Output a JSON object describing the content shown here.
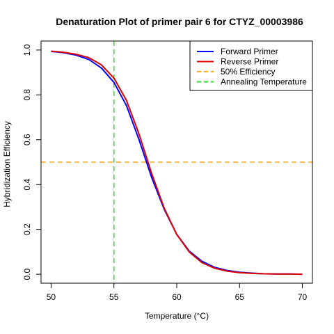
{
  "chart_data": {
    "type": "line",
    "title": "Denaturation Plot of primer pair 6 for CTYZ_00003986",
    "xlabel": "Temperature (°C)",
    "ylabel": "Hybridization Efficiency",
    "xlim": [
      49.2,
      70.8
    ],
    "ylim": [
      -0.04,
      1.04
    ],
    "xticks": [
      50,
      55,
      60,
      65,
      70
    ],
    "yticks": [
      0.0,
      0.2,
      0.4,
      0.6,
      0.8,
      1.0
    ],
    "xtick_labels": [
      "50",
      "55",
      "60",
      "65",
      "70"
    ],
    "ytick_labels": [
      "0.0",
      "0.2",
      "0.4",
      "0.6",
      "0.8",
      "1.0"
    ],
    "grid": false,
    "legend_position": "top-right",
    "x": [
      50,
      51,
      52,
      53,
      54,
      55,
      56,
      57,
      58,
      59,
      60,
      61,
      62,
      63,
      64,
      65,
      66,
      67,
      68,
      69,
      70
    ],
    "series": [
      {
        "name": "Forward Primer",
        "color": "#0000ff",
        "values": [
          0.994,
          0.988,
          0.977,
          0.958,
          0.92,
          0.856,
          0.752,
          0.6,
          0.432,
          0.29,
          0.178,
          0.103,
          0.058,
          0.031,
          0.017,
          0.009,
          0.005,
          0.002,
          0.001,
          0.001,
          0.0
        ]
      },
      {
        "name": "Reverse Primer",
        "color": "#dd0000",
        "values": [
          0.995,
          0.99,
          0.981,
          0.966,
          0.934,
          0.875,
          0.775,
          0.625,
          0.45,
          0.295,
          0.177,
          0.099,
          0.052,
          0.027,
          0.014,
          0.007,
          0.004,
          0.002,
          0.001,
          0.001,
          0.0
        ]
      }
    ],
    "reference_lines": [
      {
        "name": "50% Efficiency",
        "orientation": "horizontal",
        "value": 0.5,
        "color": "#ffa500",
        "style": "dashed"
      },
      {
        "name": "Annealing Temperature",
        "orientation": "vertical",
        "value": 55,
        "color": "#33dd33",
        "style": "dashed"
      }
    ],
    "legend": [
      {
        "label": "Forward Primer",
        "color": "#0000ff",
        "style": "solid"
      },
      {
        "label": "Reverse Primer",
        "color": "#dd0000",
        "style": "solid"
      },
      {
        "label": "50% Efficiency",
        "color": "#ffa500",
        "style": "dashed"
      },
      {
        "label": "Annealing Temperature",
        "color": "#33dd33",
        "style": "dashed"
      }
    ]
  }
}
